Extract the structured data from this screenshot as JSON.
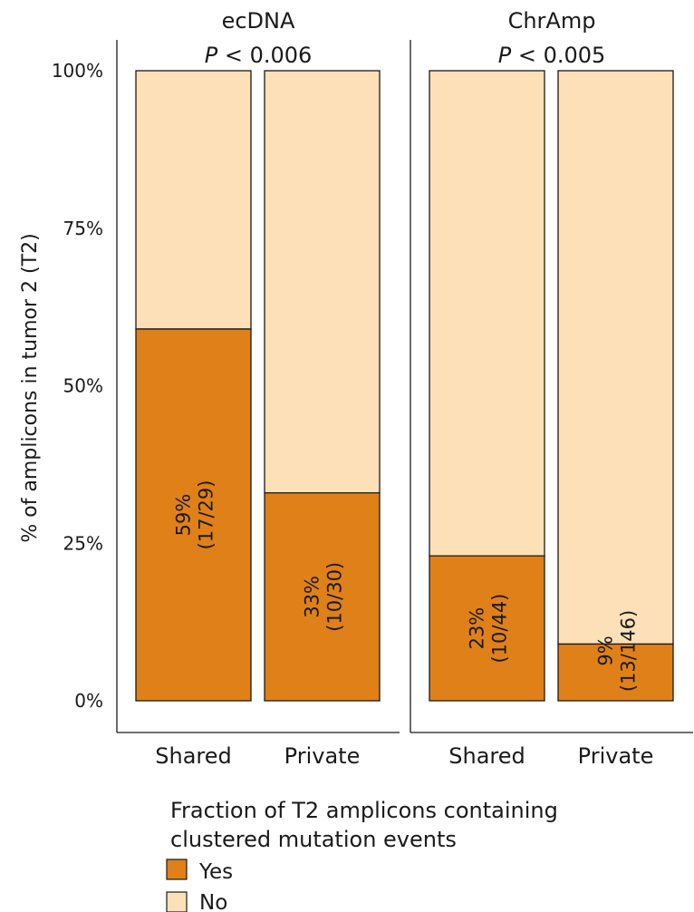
{
  "chart_data": {
    "type": "bar",
    "stacked": true,
    "ylabel": "% of amplicons in tumor 2 (T2)",
    "ylim": [
      0,
      100
    ],
    "yticks": [
      "0%",
      "25%",
      "50%",
      "75%",
      "100%"
    ],
    "legend": {
      "title_line1": "Fraction of T2 amplicons containing",
      "title_line2": "clustered mutation events",
      "placement": "bottom",
      "entries": [
        {
          "name": "Yes",
          "color": "#df8019"
        },
        {
          "name": "No",
          "color": "#fde0b8"
        }
      ]
    },
    "panels": [
      {
        "title": "ecDNA",
        "p_label": "P",
        "p_value": " < 0.006",
        "categories": [
          "Shared",
          "Private"
        ],
        "series": [
          {
            "name": "Yes",
            "values": [
              59,
              33
            ]
          },
          {
            "name": "No",
            "values": [
              41,
              67
            ]
          }
        ],
        "label_pct": [
          "59%",
          "33%"
        ],
        "label_count": [
          "(17/29)",
          "(10/30)"
        ]
      },
      {
        "title": "ChrAmp",
        "p_label": "P",
        "p_value": " < 0.005",
        "categories": [
          "Shared",
          "Private"
        ],
        "series": [
          {
            "name": "Yes",
            "values": [
              23,
              9
            ]
          },
          {
            "name": "No",
            "values": [
              77,
              91
            ]
          }
        ],
        "label_pct": [
          "23%",
          "9%"
        ],
        "label_count": [
          "(10/44)",
          "(13/146)"
        ]
      }
    ]
  }
}
